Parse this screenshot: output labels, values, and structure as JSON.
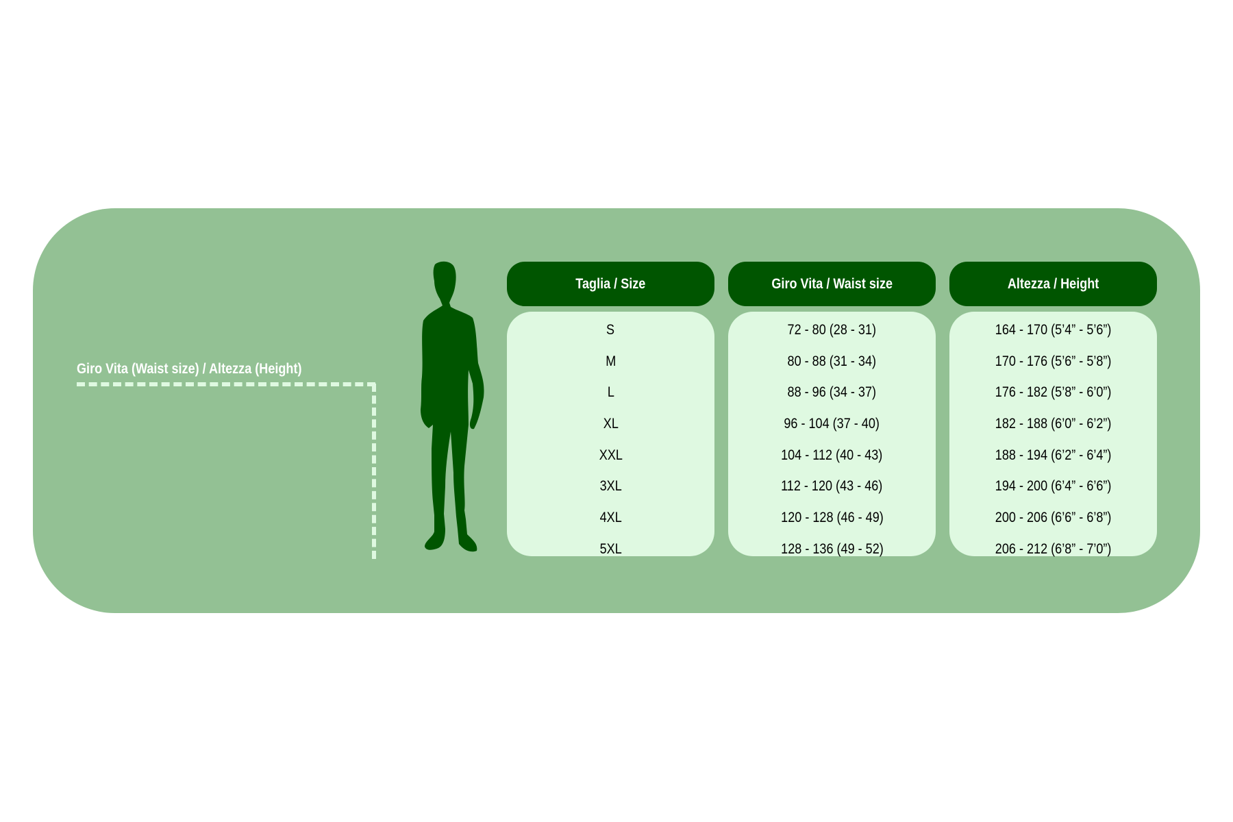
{
  "colors": {
    "panel": "#93c194",
    "header": "#005500",
    "cell_bg": "#dff9e1",
    "silhouette": "#005500"
  },
  "guide_label": "Giro Vita  (Waist size) / Altezza (Height)",
  "silhouette_icon": "man-silhouette-icon",
  "table": {
    "columns": [
      {
        "header": "Taglia / Size",
        "values": [
          "S",
          "M",
          "L",
          "XL",
          "XXL",
          "3XL",
          "4XL",
          "5XL"
        ]
      },
      {
        "header": "Giro Vita / Waist size",
        "values": [
          "72 - 80 (28 - 31)",
          "80 - 88 (31 - 34)",
          "88 - 96 (34 - 37)",
          "96 - 104 (37 - 40)",
          "104 - 112 (40 - 43)",
          "112 - 120 (43 - 46)",
          "120 - 128 (46 - 49)",
          "128 - 136 (49 - 52)"
        ]
      },
      {
        "header": "Altezza / Height",
        "values": [
          "164 - 170 (5’4” - 5’6”)",
          "170 - 176 (5’6” - 5’8”)",
          "176 - 182 (5’8” - 6’0”)",
          "182 - 188 (6’0” - 6’2”)",
          "188 - 194 (6’2” - 6’4”)",
          "194 - 200 (6’4” - 6’6”)",
          "200 - 206 (6’6” - 6’8”)",
          "206 - 212 (6’8” - 7’0”)"
        ]
      }
    ]
  }
}
